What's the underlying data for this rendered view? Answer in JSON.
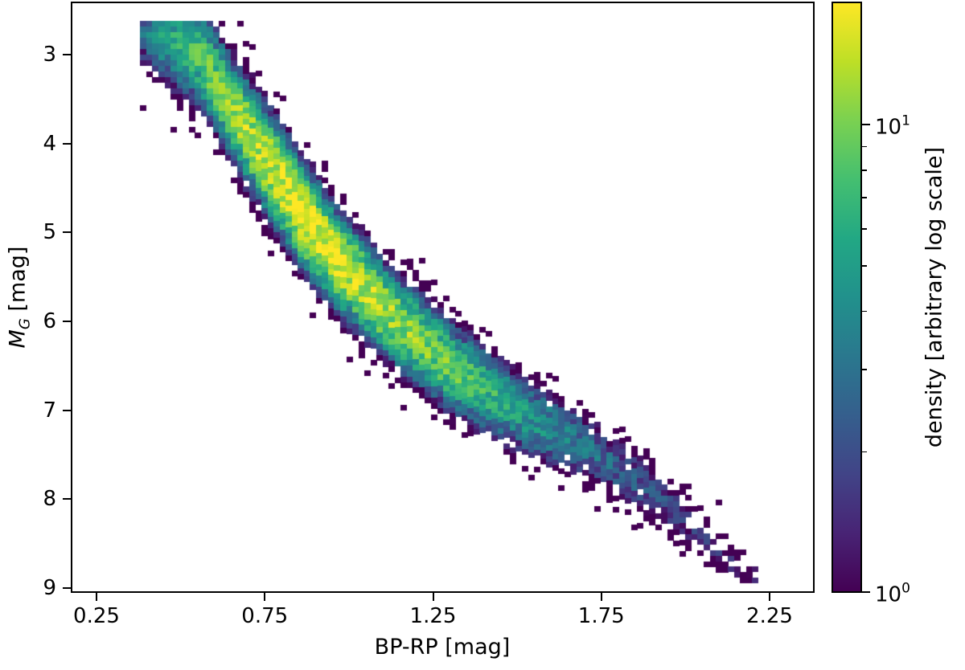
{
  "chart_data": {
    "type": "heatmap",
    "title": "",
    "xlabel": "BP-RP [mag]",
    "ylabel_main": "M",
    "ylabel_sub": "G",
    "ylabel_suffix": " [mag]",
    "xlim": [
      0.175,
      2.385
    ],
    "ylim": [
      9.05,
      2.4
    ],
    "y_inverted": true,
    "x_ticks": [
      0.25,
      0.75,
      1.25,
      1.75,
      2.25
    ],
    "x_tick_labels": [
      "0.25",
      "0.75",
      "1.25",
      "1.75",
      "2.25"
    ],
    "y_ticks": [
      3,
      4,
      5,
      6,
      7,
      8,
      9
    ],
    "y_tick_labels": [
      "3",
      "4",
      "5",
      "6",
      "7",
      "8",
      "9"
    ],
    "colormap": "viridis",
    "colorbar": {
      "label": "density [arbitrary log scale]",
      "scale": "log",
      "range": [
        1,
        18.4
      ],
      "major_ticks": [
        {
          "value": 1,
          "base": "10",
          "exp": "0"
        },
        {
          "value": 10,
          "base": "10",
          "exp": "1"
        }
      ],
      "minor_ticks": [
        2,
        3,
        4,
        5,
        6,
        7,
        8,
        9
      ]
    },
    "bin_size": {
      "x": 0.018,
      "y": 0.063
    },
    "main_sequence_ridge": {
      "bp_rp": [
        0.38,
        0.55,
        0.7,
        0.85,
        0.95,
        1.1,
        1.3,
        1.5,
        1.7,
        1.9,
        2.05,
        2.18
      ],
      "m_g": [
        2.62,
        3.0,
        3.9,
        4.75,
        5.25,
        5.85,
        6.5,
        7.0,
        7.4,
        7.9,
        8.4,
        8.85
      ]
    },
    "ridge_half_width_mag": [
      0.45,
      0.45,
      0.45,
      0.45,
      0.42,
      0.4,
      0.4,
      0.38,
      0.35,
      0.3,
      0.25,
      0.2
    ],
    "peak_density_along_ridge": [
      3,
      8,
      14,
      18,
      17,
      13,
      9,
      5,
      3,
      2,
      1.5,
      1.2
    ],
    "peak_region": {
      "bp_rp": [
        0.8,
        1.0
      ],
      "m_g": [
        4.0,
        5.7
      ],
      "density": 18
    }
  }
}
